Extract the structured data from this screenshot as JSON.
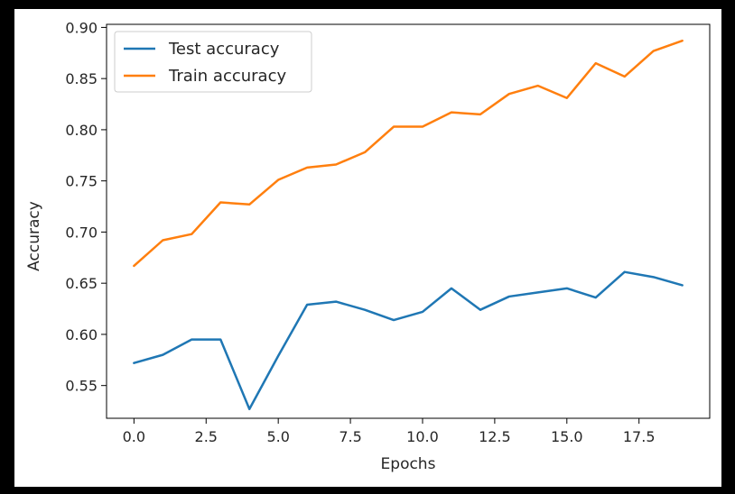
{
  "chart_data": {
    "type": "line",
    "title": "",
    "xlabel": "Epochs",
    "ylabel": "Accuracy",
    "xlim": [
      -0.95,
      19.95
    ],
    "ylim": [
      0.518,
      0.903
    ],
    "x": [
      0,
      1,
      2,
      3,
      4,
      5,
      6,
      7,
      8,
      9,
      10,
      11,
      12,
      13,
      14,
      15,
      16,
      17,
      18,
      19
    ],
    "xticks": [
      0.0,
      2.5,
      5.0,
      7.5,
      10.0,
      12.5,
      15.0,
      17.5
    ],
    "xtick_labels": [
      "0.0",
      "2.5",
      "5.0",
      "7.5",
      "10.0",
      "12.5",
      "15.0",
      "17.5"
    ],
    "yticks": [
      0.55,
      0.6,
      0.65,
      0.7,
      0.75,
      0.8,
      0.85,
      0.9
    ],
    "ytick_labels": [
      "0.55",
      "0.60",
      "0.65",
      "0.70",
      "0.75",
      "0.80",
      "0.85",
      "0.90"
    ],
    "grid": false,
    "legend_position": "top-left",
    "series": [
      {
        "name": "Test accuracy",
        "color": "#1f77b4",
        "values": [
          0.572,
          0.58,
          0.595,
          0.595,
          0.527,
          0.579,
          0.629,
          0.632,
          0.624,
          0.614,
          0.622,
          0.645,
          0.624,
          0.637,
          0.641,
          0.645,
          0.636,
          0.661,
          0.656,
          0.648
        ]
      },
      {
        "name": "Train accuracy",
        "color": "#ff7f0e",
        "values": [
          0.667,
          0.692,
          0.698,
          0.729,
          0.727,
          0.751,
          0.763,
          0.766,
          0.778,
          0.803,
          0.803,
          0.817,
          0.815,
          0.835,
          0.843,
          0.831,
          0.865,
          0.852,
          0.877,
          0.887
        ]
      }
    ]
  }
}
